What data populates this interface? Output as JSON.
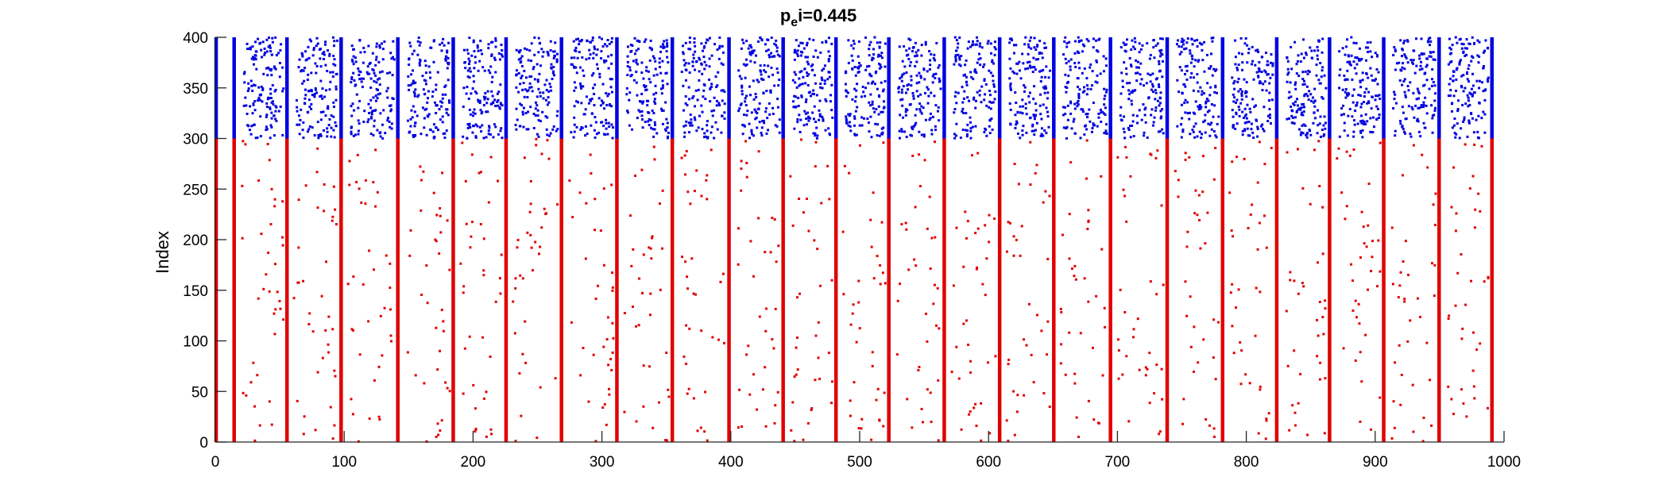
{
  "chart_data": {
    "type": "scatter",
    "title": "p",
    "title_sub": "e",
    "title_rest": "i=0.445",
    "xlabel": "",
    "ylabel": "Index",
    "xlim": [
      0,
      1000
    ],
    "ylim": [
      0,
      400
    ],
    "xticks": [
      0,
      100,
      200,
      300,
      400,
      500,
      600,
      700,
      800,
      900,
      1000
    ],
    "yticks": [
      0,
      50,
      100,
      150,
      200,
      250,
      300,
      350,
      400
    ],
    "grid": false,
    "legend": "none",
    "burst_times": [
      0,
      14,
      55,
      97,
      141,
      184,
      225,
      268,
      311,
      354,
      398,
      440,
      481,
      522,
      565,
      608,
      650,
      694,
      738,
      781,
      823,
      864,
      906,
      949,
      990
    ],
    "series": [
      {
        "index_range": [
          1,
          300
        ],
        "color": "#e00000"
      },
      {
        "index_range": [
          301,
          400
        ],
        "color": "#0000e0"
      }
    ]
  }
}
